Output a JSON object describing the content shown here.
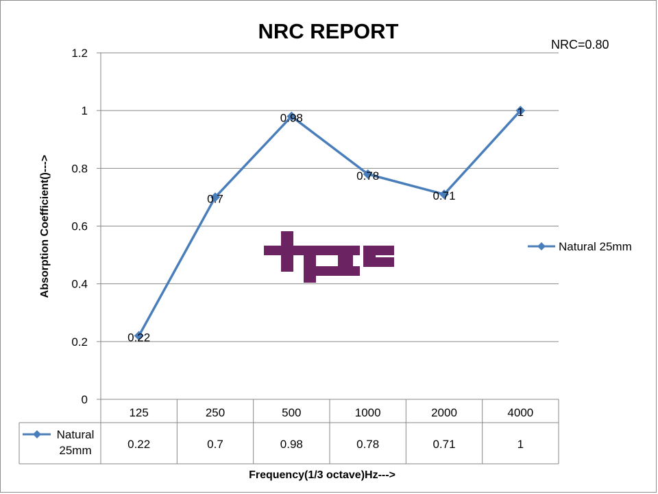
{
  "chart_data": {
    "type": "line",
    "title": "NRC REPORT",
    "annotation": "NRC=0.80",
    "xlabel": "Frequency(1/3 octave)Hz--->",
    "ylabel": "Absorption Coefficient()--->",
    "categories": [
      "125",
      "250",
      "500",
      "1000",
      "2000",
      "4000"
    ],
    "ylim": [
      0,
      1.2
    ],
    "yticks": [
      "0",
      "0.2",
      "0.4",
      "0.6",
      "0.8",
      "1",
      "1.2"
    ],
    "ytick_values": [
      0,
      0.2,
      0.4,
      0.6,
      0.8,
      1,
      1.2
    ],
    "grid": true,
    "legend": "right",
    "data_table": true,
    "series": [
      {
        "name": "Natural 25mm",
        "table_name_lines": [
          "Natural",
          "25mm"
        ],
        "values": [
          0.22,
          0.7,
          0.98,
          0.78,
          0.71,
          1
        ],
        "labels": [
          "0.22",
          "0.7",
          "0.98",
          "0.78",
          "0.71",
          "1"
        ],
        "color": "#4a7ebb"
      }
    ],
    "logo_color": "#6b2461"
  }
}
